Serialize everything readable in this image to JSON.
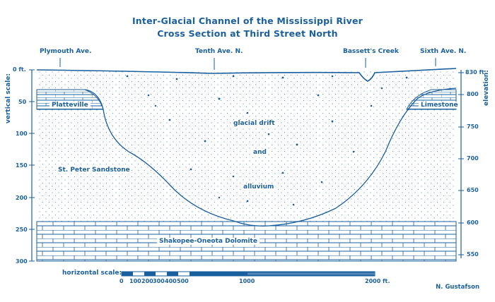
{
  "title_line1": "Inter-Glacial Channel of the Mississippi River",
  "title_line2": "Cross Section at Third Street North",
  "streets": [
    "Plymouth Ave.",
    "Tenth Ave. N.",
    "Bassett's Creek",
    "Sixth Ave. N."
  ],
  "left_axis": {
    "label": "vertical scale:",
    "ticks": [
      "0 ft.",
      "50",
      "100",
      "150",
      "200",
      "250",
      "300"
    ]
  },
  "right_axis": {
    "label": "elevation:",
    "ticks": [
      "830 ft.",
      "800",
      "750",
      "700",
      "650",
      "600",
      "550"
    ]
  },
  "units": [
    "Platteville",
    "Limestone",
    "glacial drift",
    "and",
    "alluvium",
    "St. Peter Sandstone",
    "Shakopee-Oneota Dolomite"
  ],
  "horizontal_scale": {
    "label": "horizontal scale:",
    "ticks": [
      "0",
      "100",
      "200",
      "300",
      "400",
      "500",
      "1000",
      "2000 ft."
    ]
  },
  "credit": "N. Gustafson",
  "colors": {
    "ink": "#1a5f9e",
    "background": "#ffffff"
  }
}
